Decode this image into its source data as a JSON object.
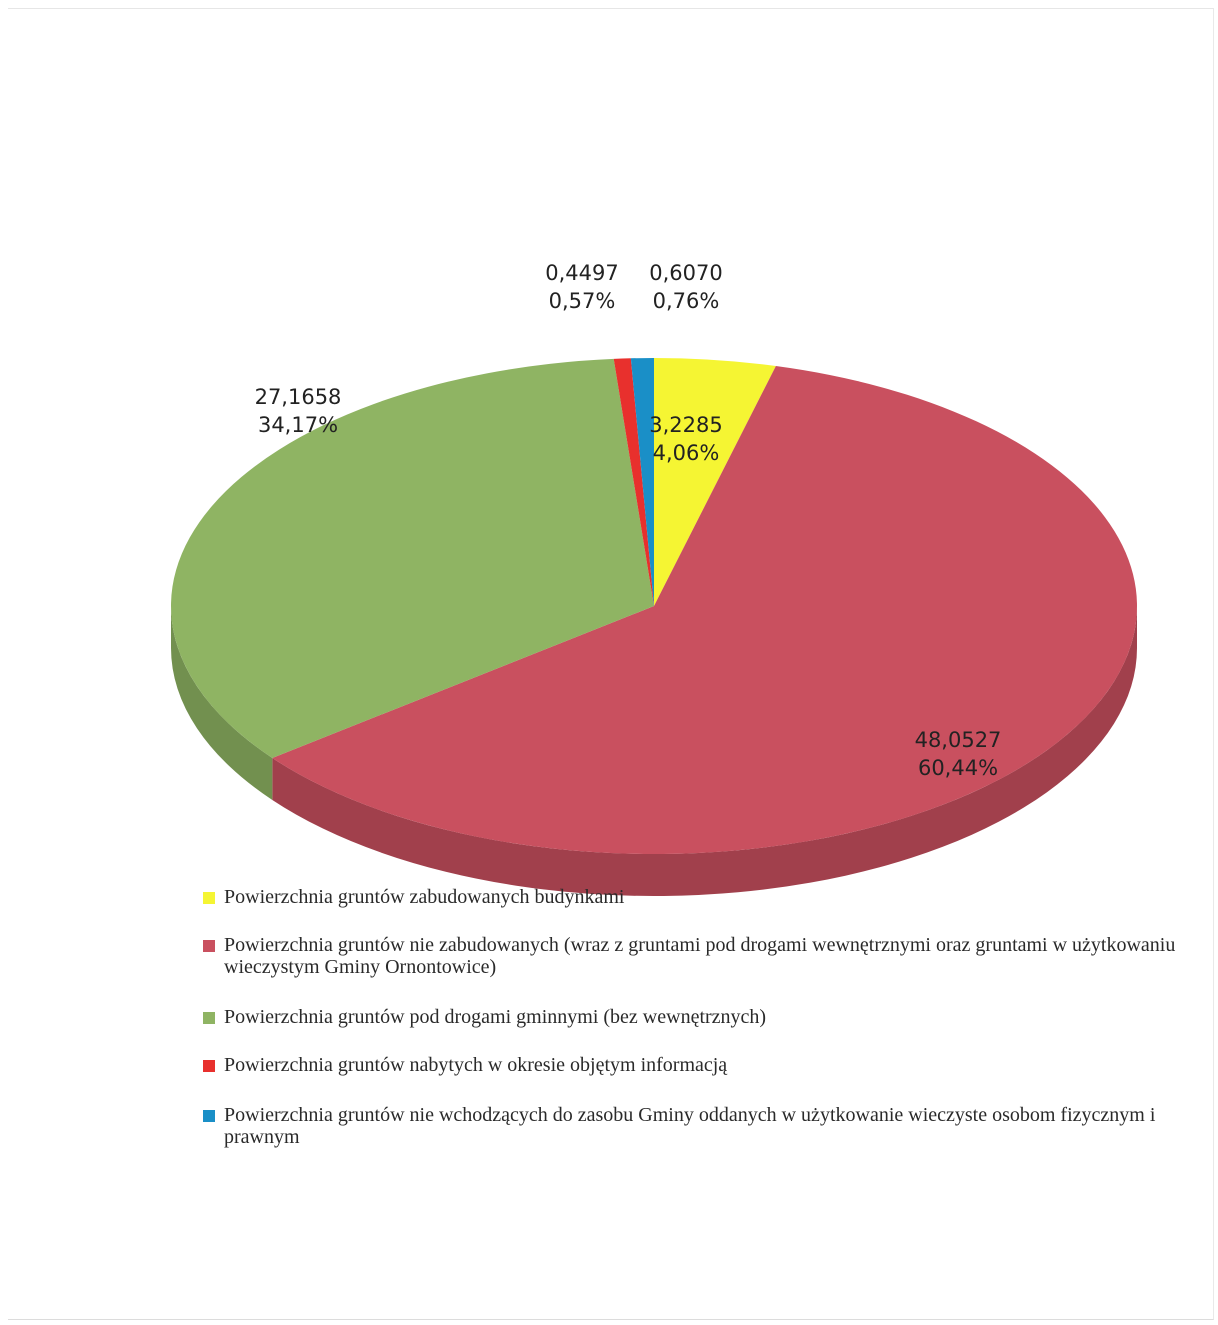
{
  "chart_data": {
    "type": "pie",
    "title": "",
    "slices": [
      {
        "label": "Powierzchnia gruntów zabudowanych budynkami",
        "value": 3.2285,
        "value_label": "3,2285",
        "percent_label": "4,06%",
        "percent": 4.06,
        "color": "#f5f533"
      },
      {
        "label": "Powierzchnia gruntów nie zabudowanych (wraz z gruntami pod drogami wewnętrznymi oraz gruntami w użytkowaniu wieczystym Gminy Ornontowice)",
        "value": 48.0527,
        "value_label": "48,0527",
        "percent_label": "60,44%",
        "percent": 60.44,
        "color": "#c9505f"
      },
      {
        "label": "Powierzchnia gruntów pod drogami gminnymi (bez wewnętrznych)",
        "value": 27.1658,
        "value_label": "27,1658",
        "percent_label": "34,17%",
        "percent": 34.17,
        "color": "#8fb463"
      },
      {
        "label": "Powierzchnia gruntów nabytych w okresie objętym informacją",
        "value": 0.4497,
        "value_label": "0,4497",
        "percent_label": "0,57%",
        "percent": 0.57,
        "color": "#e8302d"
      },
      {
        "label": "Powierzchnia gruntów nie wchodzących do zasobu Gminy oddanych w użytkowanie wieczyste osobom fizycznym i prawnym",
        "value": 0.607,
        "value_label": "0,6070",
        "percent_label": "0,76%",
        "percent": 0.76,
        "color": "#1a8fc7"
      }
    ],
    "legend_position": "bottom",
    "style": "3d-pie"
  }
}
